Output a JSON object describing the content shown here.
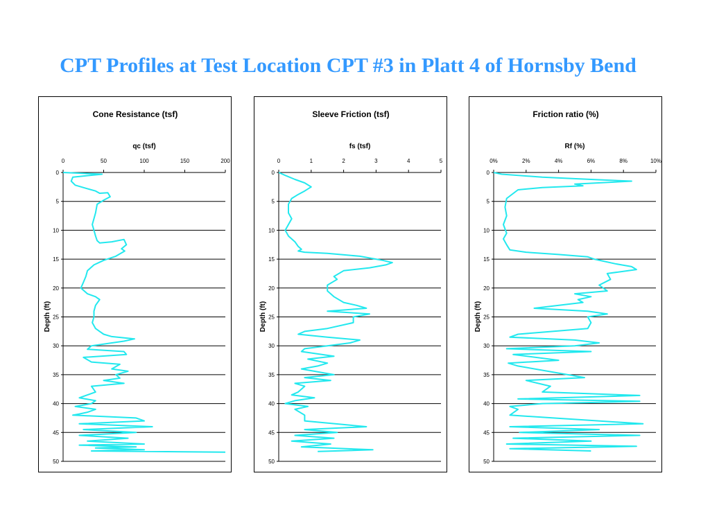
{
  "slide": {
    "title": "CPT Profiles at Test Location CPT #3 in Platt 4 of Hornsby Bend"
  },
  "colors": {
    "series": "#22e8ee",
    "title": "#3399ff",
    "grid": "#000000"
  },
  "chart_data": [
    {
      "type": "line",
      "title": "Cone Resistance (tsf)",
      "xlabel": "qc (tsf)",
      "ylabel": "Depth (ft)",
      "xlim": [
        0,
        200
      ],
      "ylim": [
        0,
        50
      ],
      "y_inverted": true,
      "x_ticks": [
        "0",
        "50",
        "100",
        "150",
        "200"
      ],
      "y_ticks": [
        "0",
        "5",
        "10",
        "15",
        "20",
        "25",
        "30",
        "35",
        "40",
        "45",
        "50"
      ],
      "grid": "horizontal",
      "series": [
        {
          "x": [
            0,
            48,
            12,
            10,
            15,
            30,
            40,
            45,
            55,
            58,
            50,
            42,
            40,
            38,
            36,
            38,
            40,
            42,
            45,
            60,
            75,
            78,
            72,
            76,
            65,
            50,
            38,
            30,
            28,
            25,
            22,
            30,
            40,
            45,
            40,
            38,
            38,
            36,
            40,
            45,
            50,
            60,
            88,
            75,
            35,
            30,
            75,
            78,
            25,
            35,
            70,
            60,
            80,
            65,
            70,
            50,
            75,
            35,
            40,
            20,
            40,
            35,
            15,
            40,
            30,
            20,
            12,
            90,
            100,
            20,
            110,
            25,
            90,
            20,
            80,
            30,
            100,
            20,
            90,
            40,
            100,
            35,
            200
          ],
          "y": [
            0,
            0.3,
            0.8,
            1.5,
            2.2,
            2.8,
            3.2,
            3.6,
            3.5,
            4.2,
            4.8,
            5.5,
            7,
            8,
            9,
            10,
            11,
            11.8,
            12.2,
            12,
            11.6,
            12.5,
            13.2,
            13.6,
            14.5,
            15.2,
            16,
            17,
            18,
            19,
            20,
            21,
            21.5,
            22,
            23,
            24,
            25,
            26,
            27,
            27.5,
            28,
            28.4,
            28.8,
            29.2,
            30,
            30.6,
            31,
            31.5,
            32,
            32.8,
            33.2,
            34,
            34.4,
            35,
            35.6,
            36,
            36.5,
            37,
            38,
            39,
            39.5,
            40,
            40.5,
            41,
            41.5,
            41.8,
            42,
            42.5,
            43,
            43.5,
            44,
            44.5,
            45,
            45.5,
            46,
            46.5,
            47,
            47.2,
            47.5,
            47.7,
            48,
            48.2,
            48.4
          ]
        }
      ]
    },
    {
      "type": "line",
      "title": "Sleeve Friction (tsf)",
      "xlabel": "fs (tsf)",
      "ylabel": "Depth (ft)",
      "xlim": [
        0,
        5
      ],
      "ylim": [
        0,
        50
      ],
      "y_inverted": true,
      "x_ticks": [
        "0",
        "1",
        "2",
        "3",
        "4",
        "5"
      ],
      "y_ticks": [
        "0",
        "5",
        "10",
        "15",
        "20",
        "25",
        "30",
        "35",
        "40",
        "45",
        "50"
      ],
      "grid": "horizontal",
      "series": [
        {
          "x": [
            0,
            0.2,
            0.5,
            0.8,
            1.0,
            0.8,
            0.6,
            0.4,
            0.3,
            0.3,
            0.4,
            0.3,
            0.2,
            0.3,
            0.5,
            0.6,
            0.7,
            0.6,
            0.8,
            1.5,
            2.5,
            3.0,
            3.2,
            3.5,
            3.3,
            2.8,
            2.0,
            1.7,
            1.8,
            1.5,
            1.5,
            1.7,
            2.0,
            2.4,
            2.7,
            1.5,
            2.8,
            2.3,
            2.3,
            1.5,
            0.8,
            0.6,
            1.5,
            2.5,
            2.2,
            1.5,
            0.8,
            0.7,
            1.7,
            0.9,
            1.5,
            1.2,
            0.7,
            1.7,
            0.8,
            1.6,
            0.5,
            0.8,
            0.6,
            0.4,
            1.1,
            0.5,
            0.2,
            0.9,
            0.5,
            0.8,
            0.8,
            2.7,
            0.8,
            1.8,
            0.5,
            1.7,
            0.4,
            1.6,
            0.7,
            2.9,
            1.2
          ],
          "y": [
            0,
            0.5,
            1.2,
            1.8,
            2.5,
            3.2,
            3.8,
            4.5,
            5.5,
            7,
            8,
            9,
            10,
            11,
            12,
            12.8,
            13.3,
            13.6,
            13.8,
            14,
            14.5,
            15,
            15.2,
            15.6,
            16,
            16.5,
            17,
            18,
            18.5,
            19.5,
            20.5,
            21.5,
            22.5,
            23,
            23.5,
            24,
            24.5,
            25,
            26,
            27,
            27.5,
            28,
            28.5,
            29,
            29.5,
            30,
            30.5,
            31,
            31.8,
            32.3,
            33,
            33.5,
            34,
            35,
            35.5,
            36,
            36.5,
            37,
            38,
            38.5,
            39,
            39.5,
            40,
            40.5,
            41,
            42,
            43,
            44,
            44.5,
            45,
            45.5,
            46,
            46.5,
            47,
            47.5,
            48,
            48.3
          ]
        }
      ]
    },
    {
      "type": "line",
      "title": "Friction ratio (%)",
      "xlabel": "Rf (%)",
      "ylabel": "Depth (ft)",
      "xlim": [
        0,
        10
      ],
      "ylim": [
        0,
        50
      ],
      "y_inverted": true,
      "x_ticks": [
        "0%",
        "2%",
        "4%",
        "6%",
        "8%",
        "10%"
      ],
      "y_ticks": [
        "0",
        "5",
        "10",
        "15",
        "20",
        "25",
        "30",
        "35",
        "40",
        "45",
        "50"
      ],
      "grid": "horizontal",
      "series": [
        {
          "x": [
            0,
            0.5,
            3,
            6,
            8.5,
            5,
            5.5,
            3,
            1.5,
            0.8,
            0.7,
            0.8,
            0.6,
            0.8,
            0.6,
            0.8,
            1.0,
            2,
            4,
            5.8,
            6.2,
            7.5,
            8.5,
            8.8,
            7.0,
            7.2,
            6.5,
            7.0,
            5.0,
            6.0,
            5.2,
            5.5,
            2.5,
            5.8,
            7.0,
            5.8,
            6.0,
            5.8,
            1.5,
            1.0,
            5.0,
            6.5,
            5.0,
            0.8,
            6.0,
            1.2,
            4.0,
            0.9,
            1.5,
            5.6,
            2.0,
            3.5,
            3.0,
            9.0,
            1.5,
            9.0,
            3.0,
            1.0,
            1.5,
            1.0,
            9.2,
            1.0,
            6.5,
            1.6,
            9.0,
            1.2,
            6.0,
            0.8,
            8.8,
            1.0,
            6.0
          ],
          "y": [
            0,
            0.3,
            0.8,
            1.2,
            1.5,
            2.0,
            2.3,
            2.6,
            3.0,
            4.5,
            6,
            7.5,
            9,
            10.5,
            11.5,
            12.5,
            13.4,
            13.8,
            14.2,
            14.6,
            15,
            15.8,
            16.3,
            16.8,
            17.5,
            18.5,
            19.5,
            20.5,
            21,
            21.5,
            22,
            22.5,
            23.5,
            24,
            24.5,
            25,
            26,
            27,
            28,
            28.5,
            29,
            29.5,
            30,
            30.5,
            31,
            31.5,
            32.5,
            33,
            33.5,
            35.5,
            36,
            37,
            38,
            38.6,
            39.2,
            39.6,
            40,
            40.5,
            41,
            42,
            43.5,
            44,
            44.5,
            45,
            45.5,
            46,
            46.5,
            47,
            47.4,
            47.8,
            48.2
          ]
        }
      ]
    }
  ]
}
